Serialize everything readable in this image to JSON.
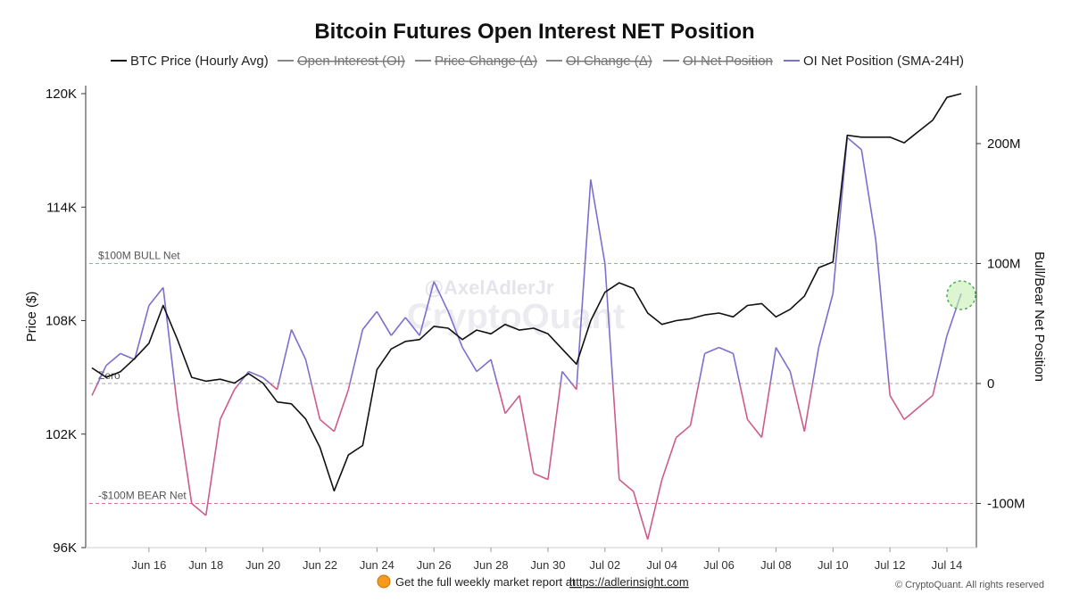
{
  "chart_data": {
    "type": "line",
    "title": "Bitcoin Futures Open Interest NET Position",
    "legend": [
      {
        "name": "BTC Price (Hourly Avg)",
        "color": "#111111",
        "active": true
      },
      {
        "name": "Open Interest (OI)",
        "color": "#888888",
        "active": false
      },
      {
        "name": "Price Change (Δ)",
        "color": "#888888",
        "active": false
      },
      {
        "name": "OI Change (Δ)",
        "color": "#888888",
        "active": false
      },
      {
        "name": "OI Net Position",
        "color": "#888888",
        "active": false
      },
      {
        "name": "OI Net Position (SMA-24H)",
        "color": "#7b6fd0",
        "active": true
      }
    ],
    "legend_position": "top",
    "y_left": {
      "label": "Price ($)",
      "range": [
        96000,
        120000
      ],
      "ticks": [
        {
          "v": 96000,
          "t": "96K"
        },
        {
          "v": 102000,
          "t": "102K"
        },
        {
          "v": 108000,
          "t": "108K"
        },
        {
          "v": 114000,
          "t": "114K"
        },
        {
          "v": 120000,
          "t": "120K"
        }
      ]
    },
    "y_right": {
      "label": "Bull/Bear Net Position",
      "range": [
        -137,
        250
      ],
      "ticks": [
        {
          "v": -100,
          "t": "-100M"
        },
        {
          "v": 0,
          "t": "0"
        },
        {
          "v": 100,
          "t": "100M"
        },
        {
          "v": 200,
          "t": "200M"
        }
      ]
    },
    "x_axis": {
      "start": "2025-06-14",
      "end": "2025-07-14T12:00",
      "ticks": [
        "Jun 16",
        "Jun 18",
        "Jun 20",
        "Jun 22",
        "Jun 24",
        "Jun 26",
        "Jun 28",
        "Jun 30",
        "Jul 02",
        "Jul 04",
        "Jul 06",
        "Jul 08",
        "Jul 10",
        "Jul 12",
        "Jul 14"
      ]
    },
    "grid": false,
    "reference_lines": [
      {
        "label": "$100M BULL Net",
        "value": 100,
        "color": "#88bb88"
      },
      {
        "label": "Zero",
        "value": 0,
        "color": "#aaaaaa"
      },
      {
        "label": "-$100M BEAR Net",
        "value": -100,
        "color": "#d9778f"
      }
    ],
    "colors": {
      "price": "#111111",
      "net_positive": "#7b6fd0",
      "net_negative": "#cc5c8c"
    },
    "series": [
      {
        "name": "BTC Price (Hourly Avg)",
        "axis": "left",
        "x": [
          "2025-06-14",
          "2025-06-14T12:00",
          "2025-06-15",
          "2025-06-15T12:00",
          "2025-06-16",
          "2025-06-16T12:00",
          "2025-06-17",
          "2025-06-17T12:00",
          "2025-06-18",
          "2025-06-18T12:00",
          "2025-06-19",
          "2025-06-19T12:00",
          "2025-06-20",
          "2025-06-20T12:00",
          "2025-06-21",
          "2025-06-21T12:00",
          "2025-06-22",
          "2025-06-22T12:00",
          "2025-06-23",
          "2025-06-23T12:00",
          "2025-06-24",
          "2025-06-24T12:00",
          "2025-06-25",
          "2025-06-25T12:00",
          "2025-06-26",
          "2025-06-26T12:00",
          "2025-06-27",
          "2025-06-27T12:00",
          "2025-06-28",
          "2025-06-28T12:00",
          "2025-06-29",
          "2025-06-29T12:00",
          "2025-06-30",
          "2025-06-30T12:00",
          "2025-07-01",
          "2025-07-01T12:00",
          "2025-07-02",
          "2025-07-02T12:00",
          "2025-07-03",
          "2025-07-03T12:00",
          "2025-07-04",
          "2025-07-04T12:00",
          "2025-07-05",
          "2025-07-05T12:00",
          "2025-07-06",
          "2025-07-06T12:00",
          "2025-07-07",
          "2025-07-07T12:00",
          "2025-07-08",
          "2025-07-08T12:00",
          "2025-07-09",
          "2025-07-09T12:00",
          "2025-07-10",
          "2025-07-10T12:00",
          "2025-07-11",
          "2025-07-11T12:00",
          "2025-07-12",
          "2025-07-12T12:00",
          "2025-07-13",
          "2025-07-13T12:00",
          "2025-07-14",
          "2025-07-14T12:00"
        ],
        "values": [
          105500,
          105000,
          105300,
          106000,
          106800,
          108800,
          107000,
          105000,
          104800,
          104900,
          104700,
          105200,
          104700,
          103700,
          103600,
          102800,
          101300,
          99000,
          100900,
          101400,
          105400,
          106500,
          106900,
          107000,
          107700,
          107600,
          107000,
          107500,
          107300,
          107800,
          107500,
          107600,
          107300,
          106500,
          105700,
          108000,
          109500,
          110000,
          109700,
          108400,
          107800,
          108000,
          108100,
          108300,
          108400,
          108200,
          108800,
          108900,
          108200,
          108600,
          109300,
          110800,
          111100,
          117800,
          117700,
          117700,
          117700,
          117400,
          118000,
          118600,
          119800,
          120000
        ]
      },
      {
        "name": "OI Net Position (SMA-24H)",
        "axis": "right",
        "x": [
          "2025-06-14",
          "2025-06-14T12:00",
          "2025-06-15",
          "2025-06-15T12:00",
          "2025-06-16",
          "2025-06-16T12:00",
          "2025-06-17",
          "2025-06-17T12:00",
          "2025-06-18",
          "2025-06-18T12:00",
          "2025-06-19",
          "2025-06-19T12:00",
          "2025-06-20",
          "2025-06-20T12:00",
          "2025-06-21",
          "2025-06-21T12:00",
          "2025-06-22",
          "2025-06-22T12:00",
          "2025-06-23",
          "2025-06-23T12:00",
          "2025-06-24",
          "2025-06-24T12:00",
          "2025-06-25",
          "2025-06-25T12:00",
          "2025-06-26",
          "2025-06-26T12:00",
          "2025-06-27",
          "2025-06-27T12:00",
          "2025-06-28",
          "2025-06-28T12:00",
          "2025-06-29",
          "2025-06-29T12:00",
          "2025-06-30",
          "2025-06-30T12:00",
          "2025-07-01",
          "2025-07-01T12:00",
          "2025-07-02",
          "2025-07-02T12:00",
          "2025-07-03",
          "2025-07-03T12:00",
          "2025-07-04",
          "2025-07-04T12:00",
          "2025-07-05",
          "2025-07-05T12:00",
          "2025-07-06",
          "2025-07-06T12:00",
          "2025-07-07",
          "2025-07-07T12:00",
          "2025-07-08",
          "2025-07-08T12:00",
          "2025-07-09",
          "2025-07-09T12:00",
          "2025-07-10",
          "2025-07-10T12:00",
          "2025-07-11",
          "2025-07-11T12:00",
          "2025-07-12",
          "2025-07-12T12:00",
          "2025-07-13",
          "2025-07-13T12:00",
          "2025-07-14",
          "2025-07-14T12:00"
        ],
        "values": [
          -10,
          15,
          25,
          20,
          65,
          80,
          -20,
          -100,
          -110,
          -30,
          -5,
          10,
          5,
          -5,
          45,
          20,
          -30,
          -40,
          -5,
          45,
          60,
          40,
          55,
          40,
          85,
          60,
          30,
          10,
          20,
          -25,
          -10,
          -75,
          -80,
          10,
          -5,
          170,
          100,
          -80,
          -90,
          -130,
          -80,
          -45,
          -35,
          25,
          30,
          25,
          -30,
          -45,
          30,
          10,
          -40,
          30,
          75,
          205,
          195,
          120,
          -10,
          -30,
          -20,
          -10,
          40,
          75
        ]
      }
    ]
  },
  "watermark": {
    "handle": "@AxelAdlerJr",
    "brand": "CryptoQuant"
  },
  "footer": {
    "text": "Get the full weekly market report at",
    "link": "https://adlerinsight.com"
  },
  "copyright": "© CryptoQuant. All rights reserved"
}
